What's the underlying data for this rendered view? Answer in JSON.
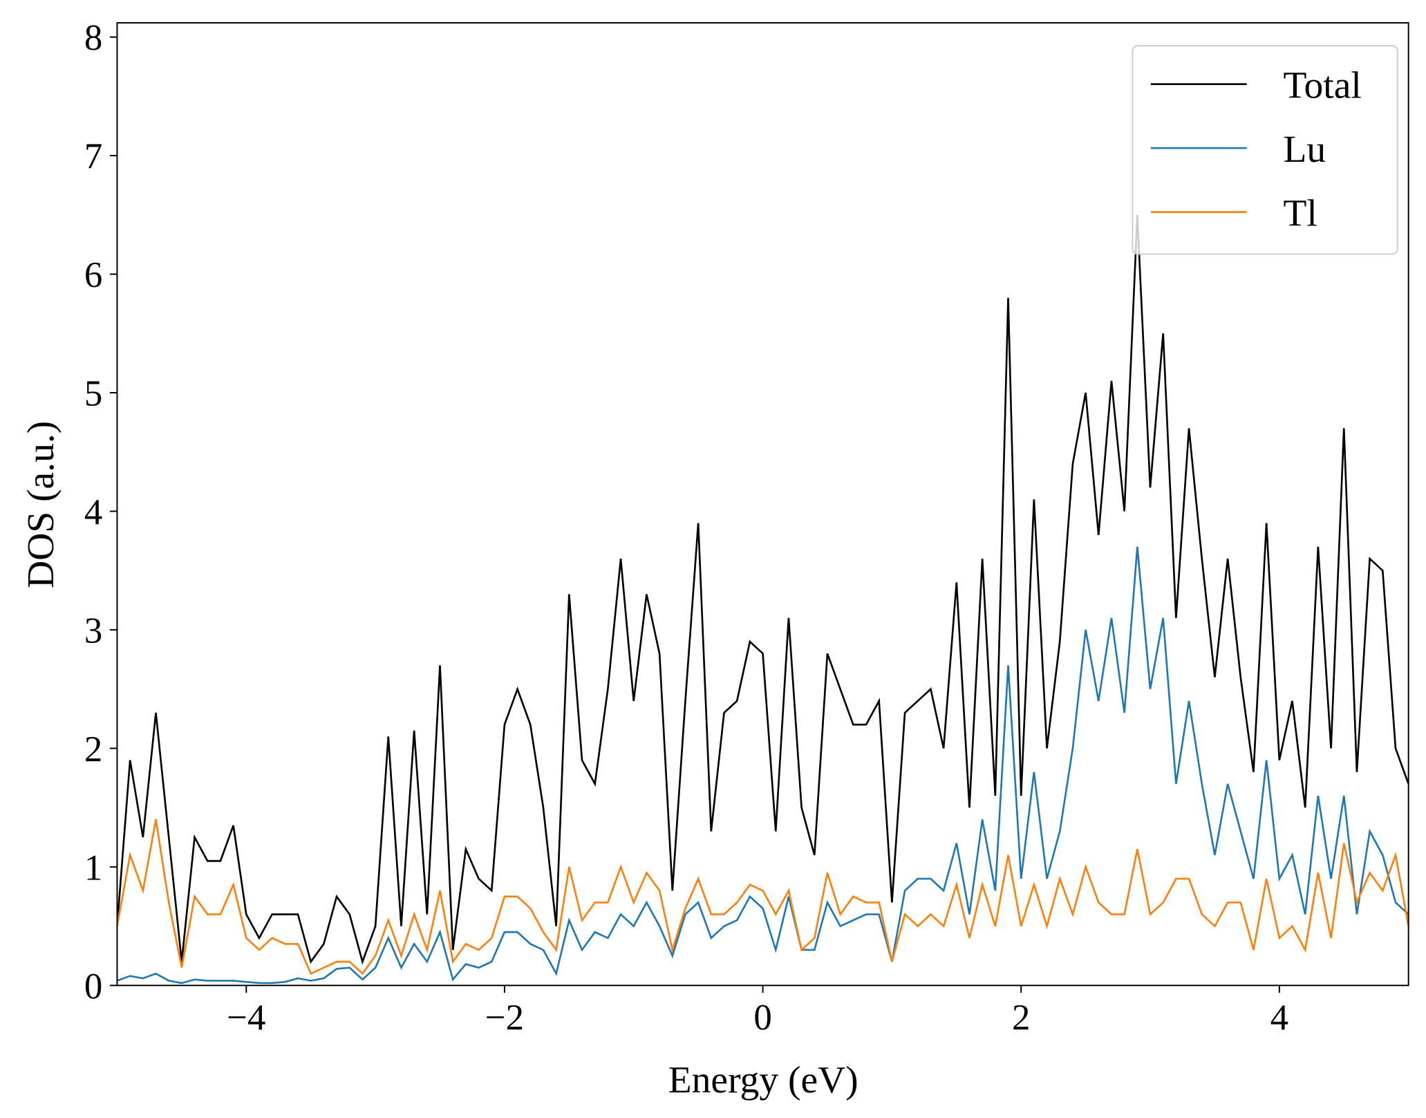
{
  "chart_data": {
    "type": "line",
    "xlabel": "Energy (eV)",
    "ylabel": "DOS (a.u.)",
    "xlim": [
      -5,
      5
    ],
    "ylim": [
      0,
      8.12
    ],
    "xticks": [
      {
        "value": -4,
        "label": "−4"
      },
      {
        "value": -2,
        "label": "−2"
      },
      0,
      2,
      4
    ],
    "yticks": [
      0,
      1,
      2,
      3,
      4,
      5,
      6,
      7,
      8
    ],
    "grid": false,
    "legend": "upper right",
    "x": [
      -5.0,
      -4.9,
      -4.8,
      -4.7,
      -4.6,
      -4.5,
      -4.4,
      -4.3,
      -4.2,
      -4.1,
      -4.0,
      -3.9,
      -3.8,
      -3.7,
      -3.6,
      -3.5,
      -3.4,
      -3.3,
      -3.2,
      -3.1,
      -3.0,
      -2.9,
      -2.8,
      -2.7,
      -2.6,
      -2.5,
      -2.4,
      -2.3,
      -2.2,
      -2.1,
      -2.0,
      -1.9,
      -1.8,
      -1.7,
      -1.6,
      -1.5,
      -1.4,
      -1.3,
      -1.2,
      -1.1,
      -1.0,
      -0.9,
      -0.8,
      -0.7,
      -0.6,
      -0.5,
      -0.4,
      -0.3,
      -0.2,
      -0.1,
      0.0,
      0.1,
      0.2,
      0.3,
      0.4,
      0.5,
      0.6,
      0.7,
      0.8,
      0.9,
      1.0,
      1.1,
      1.2,
      1.3,
      1.4,
      1.5,
      1.6,
      1.7,
      1.8,
      1.9,
      2.0,
      2.1,
      2.2,
      2.3,
      2.4,
      2.5,
      2.6,
      2.7,
      2.8,
      2.9,
      3.0,
      3.1,
      3.2,
      3.3,
      3.4,
      3.5,
      3.6,
      3.7,
      3.8,
      3.9,
      4.0,
      4.1,
      4.2,
      4.3,
      4.4,
      4.5,
      4.6,
      4.7,
      4.8,
      4.9,
      5.0
    ],
    "series": [
      {
        "name": "Total",
        "color": "#000000",
        "values": [
          0.5,
          1.9,
          1.25,
          2.3,
          1.25,
          0.2,
          1.25,
          1.05,
          1.05,
          1.35,
          0.6,
          0.4,
          0.6,
          0.6,
          0.6,
          0.2,
          0.35,
          0.75,
          0.6,
          0.2,
          0.5,
          2.1,
          0.5,
          2.15,
          0.6,
          2.7,
          0.3,
          1.15,
          0.9,
          0.8,
          2.2,
          2.5,
          2.2,
          1.5,
          0.5,
          3.3,
          1.9,
          1.7,
          2.5,
          3.6,
          2.4,
          3.3,
          2.8,
          0.8,
          2.4,
          3.9,
          1.3,
          2.3,
          2.4,
          2.9,
          2.8,
          1.3,
          3.1,
          1.5,
          1.1,
          2.8,
          2.5,
          2.2,
          2.2,
          2.4,
          0.7,
          2.3,
          2.4,
          2.5,
          2.0,
          3.4,
          1.5,
          3.6,
          1.6,
          5.8,
          1.6,
          4.1,
          2.0,
          2.9,
          4.4,
          5.0,
          3.8,
          5.1,
          4.0,
          6.5,
          4.2,
          5.5,
          3.1,
          4.7,
          3.6,
          2.6,
          3.6,
          2.6,
          1.8,
          3.9,
          1.9,
          2.4,
          1.5,
          3.7,
          2.0,
          4.7,
          1.8,
          3.6,
          3.5,
          2.0,
          1.7
        ]
      },
      {
        "name": "Lu",
        "color": "#1f77b4",
        "values": [
          0.04,
          0.08,
          0.06,
          0.1,
          0.04,
          0.02,
          0.05,
          0.04,
          0.04,
          0.04,
          0.03,
          0.02,
          0.02,
          0.03,
          0.06,
          0.04,
          0.06,
          0.14,
          0.15,
          0.05,
          0.15,
          0.4,
          0.15,
          0.35,
          0.2,
          0.45,
          0.05,
          0.18,
          0.15,
          0.2,
          0.45,
          0.45,
          0.35,
          0.3,
          0.1,
          0.55,
          0.3,
          0.45,
          0.4,
          0.6,
          0.5,
          0.7,
          0.5,
          0.25,
          0.6,
          0.7,
          0.4,
          0.5,
          0.55,
          0.75,
          0.65,
          0.3,
          0.75,
          0.3,
          0.3,
          0.7,
          0.5,
          0.55,
          0.6,
          0.6,
          0.2,
          0.8,
          0.9,
          0.9,
          0.8,
          1.2,
          0.6,
          1.4,
          0.8,
          2.7,
          0.9,
          1.8,
          0.9,
          1.3,
          2.0,
          3.0,
          2.4,
          3.1,
          2.3,
          3.7,
          2.5,
          3.1,
          1.7,
          2.4,
          1.7,
          1.1,
          1.7,
          1.3,
          0.9,
          1.9,
          0.9,
          1.1,
          0.6,
          1.6,
          0.9,
          1.6,
          0.6,
          1.3,
          1.1,
          0.7,
          0.6
        ]
      },
      {
        "name": "Tl",
        "color": "#ff7f0e",
        "values": [
          0.5,
          1.1,
          0.8,
          1.4,
          0.7,
          0.15,
          0.75,
          0.6,
          0.6,
          0.85,
          0.4,
          0.3,
          0.4,
          0.35,
          0.35,
          0.1,
          0.15,
          0.2,
          0.2,
          0.1,
          0.25,
          0.55,
          0.25,
          0.6,
          0.3,
          0.8,
          0.2,
          0.35,
          0.3,
          0.4,
          0.75,
          0.75,
          0.65,
          0.45,
          0.3,
          1.0,
          0.55,
          0.7,
          0.7,
          1.0,
          0.7,
          0.95,
          0.8,
          0.3,
          0.65,
          0.9,
          0.6,
          0.6,
          0.7,
          0.85,
          0.8,
          0.6,
          0.8,
          0.3,
          0.4,
          0.95,
          0.6,
          0.75,
          0.7,
          0.7,
          0.2,
          0.6,
          0.5,
          0.6,
          0.5,
          0.85,
          0.4,
          0.85,
          0.5,
          1.1,
          0.5,
          0.85,
          0.5,
          0.9,
          0.6,
          1.0,
          0.7,
          0.6,
          0.6,
          1.15,
          0.6,
          0.7,
          0.9,
          0.9,
          0.6,
          0.5,
          0.7,
          0.7,
          0.3,
          0.9,
          0.4,
          0.5,
          0.3,
          0.95,
          0.4,
          1.2,
          0.7,
          0.95,
          0.8,
          1.1,
          0.5
        ]
      }
    ]
  }
}
